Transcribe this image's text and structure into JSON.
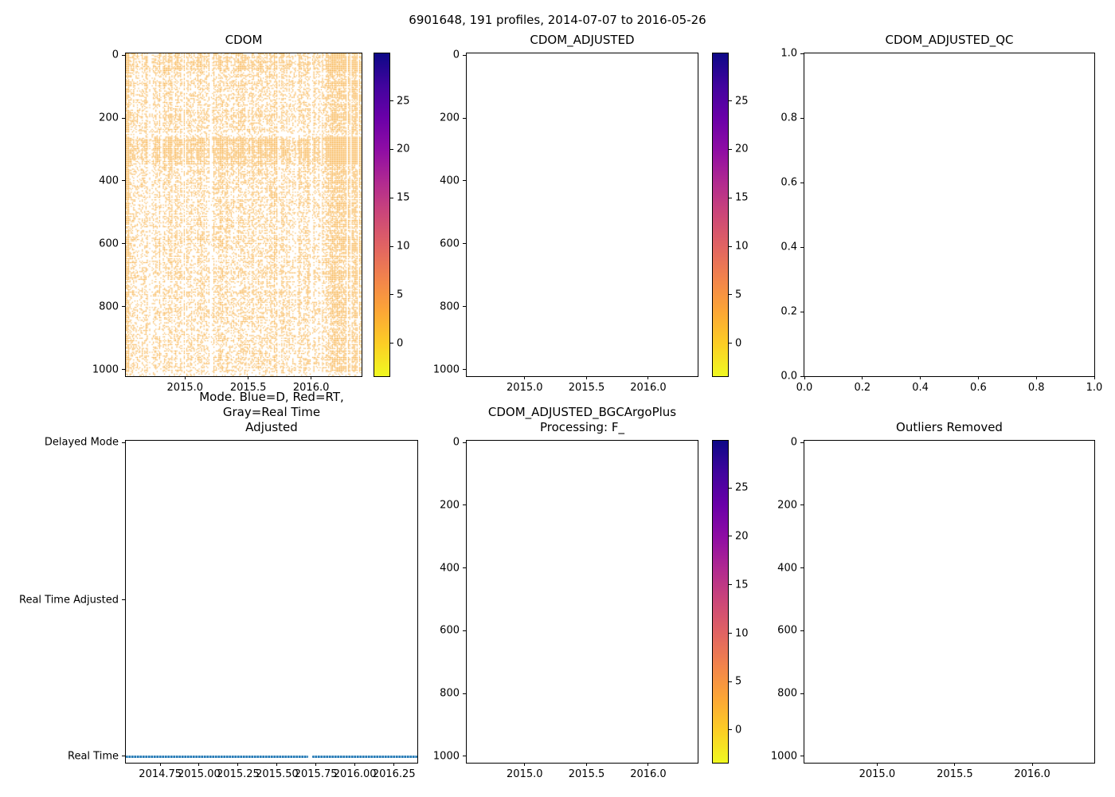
{
  "figure": {
    "suptitle": "6901648, 191 profiles, 2014-07-07 to 2016-05-26",
    "background": "#ffffff"
  },
  "colorbar": {
    "colormap": "plasma_r",
    "value_range_approx": [
      -3.4,
      30
    ],
    "ticks": [
      {
        "label": "25",
        "pos": 14.7
      },
      {
        "label": "20",
        "pos": 29.7
      },
      {
        "label": "15",
        "pos": 44.8
      },
      {
        "label": "10",
        "pos": 59.8
      },
      {
        "label": "5",
        "pos": 74.8
      },
      {
        "label": "0",
        "pos": 89.8
      }
    ],
    "gradient": [
      "#0d0887",
      "#41049d",
      "#6a00a8",
      "#8f0da4",
      "#b12a90",
      "#cc4778",
      "#e16462",
      "#f2844b",
      "#fca636",
      "#fcce25",
      "#f0f921"
    ]
  },
  "chart_data": [
    {
      "type": "heatmap",
      "title": "CDOM",
      "x_range": [
        2014.53,
        2016.4
      ],
      "y_range": [
        1000,
        0
      ],
      "xlabel": "",
      "ylabel": "",
      "xticks": [
        {
          "label": "2015.0",
          "pos": 25.1
        },
        {
          "label": "2015.5",
          "pos": 51.9
        },
        {
          "label": "2016.0",
          "pos": 78.6
        }
      ],
      "yticks": [
        {
          "label": "0",
          "pos": 0.5
        },
        {
          "label": "200",
          "pos": 20
        },
        {
          "label": "400",
          "pos": 39.5
        },
        {
          "label": "600",
          "pos": 59
        },
        {
          "label": "800",
          "pos": 78.5
        },
        {
          "label": "1000",
          "pos": 98
        }
      ],
      "has_colorbar": true,
      "heatmap": {
        "seed": 7,
        "color": "#f6a52e",
        "n_profiles": 191,
        "n_rows": 252,
        "value_summary": "most points low CDOM ~0-5 (orange in plasma_r)",
        "bands": [
          {
            "from": 0.0,
            "to": 0.05,
            "p": 0.72
          },
          {
            "from": 0.05,
            "to": 0.24,
            "p": 0.5
          },
          {
            "from": 0.24,
            "to": 0.255,
            "p": 0.33
          },
          {
            "from": 0.255,
            "to": 0.345,
            "p": 0.95
          },
          {
            "from": 0.345,
            "to": 0.44,
            "p": 0.52
          },
          {
            "from": 0.44,
            "to": 0.75,
            "p": 0.48
          },
          {
            "from": 0.75,
            "to": 0.985,
            "p": 0.45
          },
          {
            "from": 0.985,
            "to": 1.0,
            "p": 0.25
          }
        ],
        "solid_left_cols": 3,
        "sparse_col_chance": 0.06,
        "dense_right_from": 0.865,
        "white_col_fracs": [
          0.938,
          0.951,
          0.984
        ]
      }
    },
    {
      "type": "heatmap",
      "title": "CDOM_ADJUSTED",
      "empty": true,
      "x_range": [
        2014.53,
        2016.4
      ],
      "y_range": [
        1000,
        0
      ],
      "xticks": [
        {
          "label": "2015.0",
          "pos": 25.1
        },
        {
          "label": "2015.5",
          "pos": 51.9
        },
        {
          "label": "2016.0",
          "pos": 78.6
        }
      ],
      "yticks": [
        {
          "label": "0",
          "pos": 0.5
        },
        {
          "label": "200",
          "pos": 20
        },
        {
          "label": "400",
          "pos": 39.5
        },
        {
          "label": "600",
          "pos": 59
        },
        {
          "label": "800",
          "pos": 78.5
        },
        {
          "label": "1000",
          "pos": 98
        }
      ],
      "has_colorbar": true
    },
    {
      "type": "scatter",
      "title": "CDOM_ADJUSTED_QC",
      "empty": true,
      "x_range": [
        0.0,
        1.0
      ],
      "y_range": [
        0.0,
        1.0
      ],
      "xticks": [
        {
          "label": "0.0",
          "pos": 0
        },
        {
          "label": "0.2",
          "pos": 20
        },
        {
          "label": "0.4",
          "pos": 40
        },
        {
          "label": "0.6",
          "pos": 60
        },
        {
          "label": "0.8",
          "pos": 80
        },
        {
          "label": "1.0",
          "pos": 100
        }
      ],
      "yticks": [
        {
          "label": "1.0",
          "pos": 0
        },
        {
          "label": "0.8",
          "pos": 20
        },
        {
          "label": "0.6",
          "pos": 40
        },
        {
          "label": "0.4",
          "pos": 60
        },
        {
          "label": "0.2",
          "pos": 80
        },
        {
          "label": "0.0",
          "pos": 100
        }
      ]
    },
    {
      "type": "scatter",
      "title": "Mode. Blue=D, Red=RT,\nGray=Real Time Adjusted",
      "x_range": [
        2014.53,
        2016.4
      ],
      "y_categories": [
        "Delayed Mode",
        "Real Time Adjusted",
        "Real Time"
      ],
      "xticks": [
        {
          "label": "2014.75",
          "pos": 11.8
        },
        {
          "label": "2015.00",
          "pos": 25.1
        },
        {
          "label": "2015.25",
          "pos": 38.5
        },
        {
          "label": "2015.50",
          "pos": 51.9
        },
        {
          "label": "2015.75",
          "pos": 65.2
        },
        {
          "label": "2016.00",
          "pos": 78.6
        },
        {
          "label": "2016.25",
          "pos": 92.0
        }
      ],
      "yticks": [
        {
          "label": "Delayed Mode",
          "pos": 0.5
        },
        {
          "label": "Real Time Adjusted",
          "pos": 49.5
        },
        {
          "label": "Real Time",
          "pos": 98
        }
      ],
      "series": [
        {
          "name": "Real Time",
          "color": "#1f77b4",
          "marker": "dotted-line",
          "y_pos": 98,
          "segments": [
            [
              0.0,
              0.625
            ],
            [
              0.639,
              1.0
            ]
          ],
          "x_span": [
            2014.53,
            2016.4
          ],
          "gap_x": [
            2015.7,
            2015.77
          ]
        }
      ]
    },
    {
      "type": "heatmap",
      "title": "CDOM_ADJUSTED_BGCArgoPlus\nProcessing: F_",
      "empty": true,
      "x_range": [
        2014.53,
        2016.4
      ],
      "y_range": [
        1000,
        0
      ],
      "xticks": [
        {
          "label": "2015.0",
          "pos": 25.1
        },
        {
          "label": "2015.5",
          "pos": 51.9
        },
        {
          "label": "2016.0",
          "pos": 78.6
        }
      ],
      "yticks": [
        {
          "label": "0",
          "pos": 0.5
        },
        {
          "label": "200",
          "pos": 20
        },
        {
          "label": "400",
          "pos": 39.5
        },
        {
          "label": "600",
          "pos": 59
        },
        {
          "label": "800",
          "pos": 78.5
        },
        {
          "label": "1000",
          "pos": 98
        }
      ],
      "has_colorbar": true
    },
    {
      "type": "scatter",
      "title": "Outliers Removed",
      "empty": true,
      "x_range": [
        2014.53,
        2016.4
      ],
      "y_range": [
        1000,
        0
      ],
      "xticks": [
        {
          "label": "2015.0",
          "pos": 25.1
        },
        {
          "label": "2015.5",
          "pos": 51.9
        },
        {
          "label": "2016.0",
          "pos": 78.6
        }
      ],
      "yticks": [
        {
          "label": "0",
          "pos": 0.5
        },
        {
          "label": "200",
          "pos": 20
        },
        {
          "label": "400",
          "pos": 39.5
        },
        {
          "label": "600",
          "pos": 59
        },
        {
          "label": "800",
          "pos": 78.5
        },
        {
          "label": "1000",
          "pos": 98
        }
      ]
    }
  ]
}
